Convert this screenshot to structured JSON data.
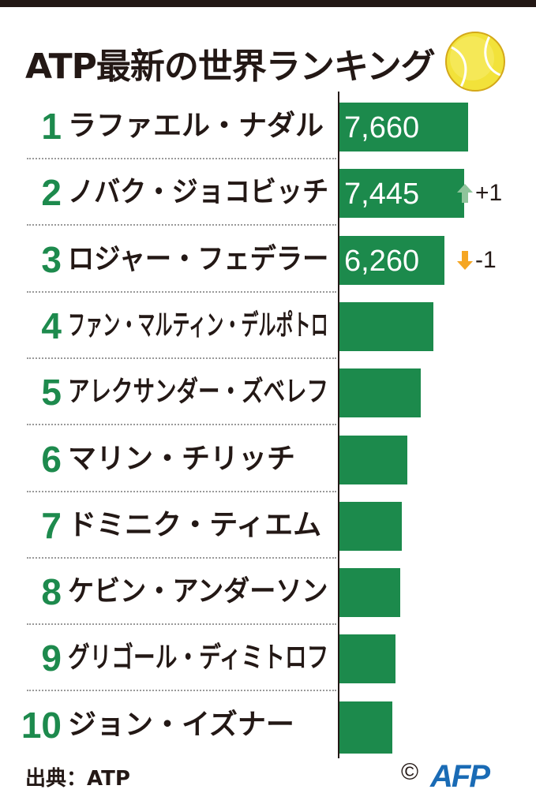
{
  "title": "ATP最新の世界ランキング",
  "source": "出典：ATP",
  "credit": {
    "copyright": "©",
    "logo": "AFP"
  },
  "colors": {
    "bar": "#1c8a4c",
    "rank": "#1d8a4d",
    "up": "#8fc49b",
    "down": "#f5a623"
  },
  "icons": {
    "ball": "tennis-ball-icon",
    "up": "arrow-up-icon",
    "down": "arrow-down-icon"
  },
  "chart_data": {
    "type": "bar",
    "orientation": "horizontal",
    "title": "ATP最新の世界ランキング",
    "categories": [
      "ラファエル・ナダル",
      "ノバク・ジョコビッチ",
      "ロジャー・フェデラー",
      "ファン・マルティン・デルポトロ",
      "アレクサンダー・ズベレフ",
      "マリン・チリッチ",
      "ドミニク・ティエム",
      "ケビン・アンダーソン",
      "グリゴール・ディミトロフ",
      "ジョン・イズナー"
    ],
    "ranks": [
      "1",
      "2",
      "3",
      "4",
      "5",
      "6",
      "7",
      "8",
      "9",
      "10"
    ],
    "values": [
      7660,
      7445,
      6260,
      5575,
      4835,
      4050,
      3705,
      3635,
      3330,
      3155
    ],
    "value_labels": [
      "7,660",
      "7,445",
      "6,260",
      "",
      "",
      "",
      "",
      "",
      "",
      ""
    ],
    "changes": [
      {
        "rank_index": 1,
        "direction": "up",
        "text": "+1"
      },
      {
        "rank_index": 2,
        "direction": "down",
        "text": "-1"
      }
    ],
    "xlim": [
      0,
      8000
    ],
    "grid": false,
    "legend": "none"
  }
}
